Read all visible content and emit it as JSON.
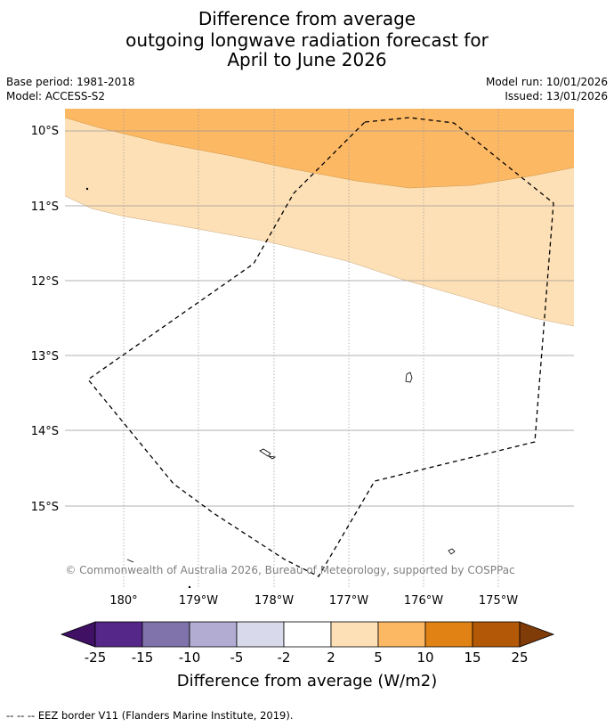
{
  "title": {
    "line1": "Difference from average",
    "line2": "outgoing longwave radiation forecast for",
    "line3": "April to June 2026"
  },
  "meta": {
    "base_period": "Base period: 1981-2018",
    "model": "Model: ACCESS-S2",
    "model_run": "Model run: 10/01/2026",
    "issued": "Issued: 13/01/2026"
  },
  "map": {
    "lat_labels": [
      "10°S",
      "11°S",
      "12°S",
      "13°S",
      "14°S",
      "15°S"
    ],
    "lon_labels": [
      "180°",
      "179°W",
      "178°W",
      "177°W",
      "176°W",
      "175°W"
    ],
    "copyright": "© Commonwealth of Australia 2026, Bureau of Meteorology, supported by COSPPac",
    "colors": {
      "band_5_10": "#fdb863",
      "band_2_5": "#fee0b6",
      "land": "#ffffff"
    }
  },
  "colorbar": {
    "tick_labels": [
      "-25",
      "-15",
      "-10",
      "-5",
      "-2",
      "2",
      "5",
      "10",
      "15",
      "25"
    ],
    "colors": [
      "#3f1063",
      "#542788",
      "#8073ac",
      "#b2abd2",
      "#d8daeb",
      "#ffffff",
      "#fee0b6",
      "#fdb863",
      "#e08214",
      "#b35806",
      "#7f3b08"
    ],
    "label": "Difference from average (W/m2)"
  },
  "legend": {
    "eez_marker": "-- -- --",
    "eez_text": "EEZ border V11 (Flanders Marine Institute, 2019)."
  }
}
